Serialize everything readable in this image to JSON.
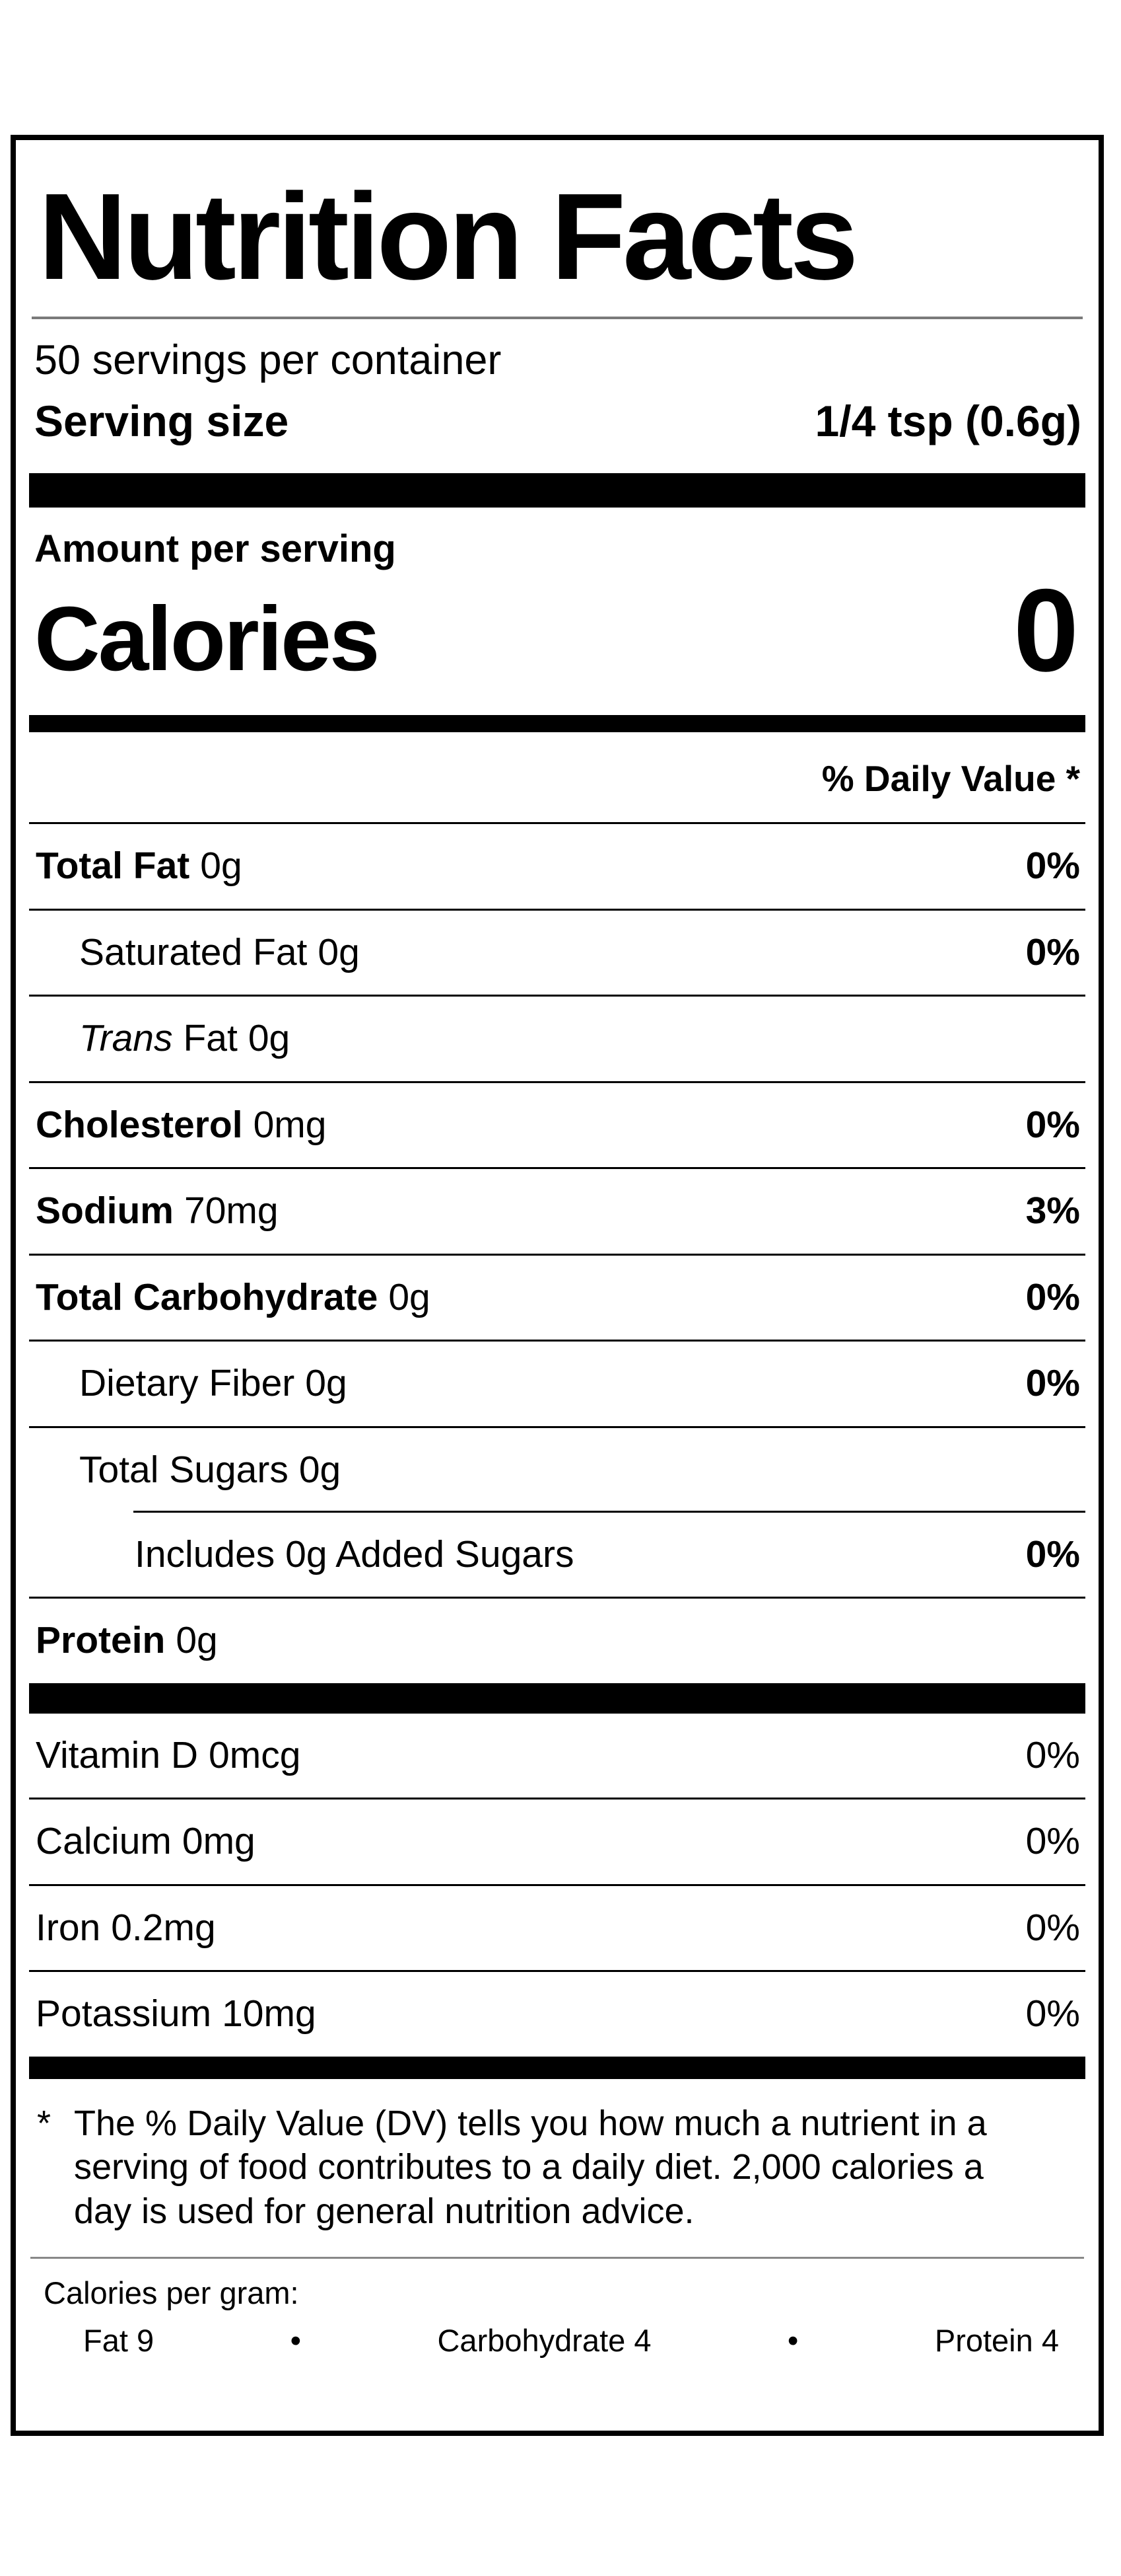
{
  "colors": {
    "text": "#000000",
    "background": "#ffffff",
    "thick_rule": "#000000",
    "thin_gray_rule": "#7a7a7a"
  },
  "label": {
    "title": "Nutrition Facts",
    "servings_per_container": "50 servings per container",
    "serving_size_label": "Serving size",
    "serving_size_value": "1/4 tsp (0.6g)",
    "amount_per_serving": "Amount per serving",
    "calories_label": "Calories",
    "calories_value": "0",
    "daily_value_header": "% Daily Value *",
    "nutrients": [
      {
        "name": "Total Fat",
        "amount": "0g",
        "dv": "0%"
      },
      {
        "name": "Saturated Fat",
        "amount": "0g",
        "dv": "0%"
      },
      {
        "name_italic": "Trans",
        "name": "Fat",
        "amount": "0g",
        "dv": ""
      },
      {
        "name": "Cholesterol",
        "amount": "0mg",
        "dv": "0%"
      },
      {
        "name": "Sodium",
        "amount": "70mg",
        "dv": "3%"
      },
      {
        "name": "Total Carbohydrate",
        "amount": "0g",
        "dv": "0%"
      },
      {
        "name": "Dietary Fiber",
        "amount": "0g",
        "dv": "0%"
      },
      {
        "name": "Total Sugars",
        "amount": "0g",
        "dv": ""
      },
      {
        "name": "Includes 0g Added Sugars",
        "amount": "",
        "dv": "0%"
      },
      {
        "name": "Protein",
        "amount": "0g",
        "dv": ""
      }
    ],
    "vitamins": [
      {
        "name": "Vitamin D",
        "amount": "0mcg",
        "dv": "0%"
      },
      {
        "name": "Calcium",
        "amount": "0mg",
        "dv": "0%"
      },
      {
        "name": "Iron",
        "amount": "0.2mg",
        "dv": "0%"
      },
      {
        "name": "Potassium",
        "amount": "10mg",
        "dv": "0%"
      }
    ],
    "footnote": {
      "marker": "*",
      "text": "The % Daily Value (DV) tells you how much a nutrient in a serving of food contributes to a daily diet. 2,000 calories a day is used for general nutrition advice."
    },
    "calories_per_gram": {
      "label": "Calories per gram:",
      "bullet": "•",
      "items": [
        "Fat 9",
        "Carbohydrate 4",
        "Protein 4"
      ]
    }
  }
}
